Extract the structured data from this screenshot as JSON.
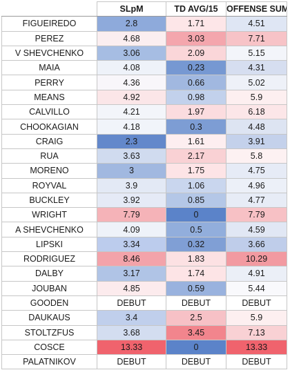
{
  "columns": [
    "",
    "SLpM",
    "TD AVG/15",
    "OFFENSE SUM"
  ],
  "rows": [
    {
      "name": "FIGUEIREDO",
      "cells": [
        {
          "v": "2.8",
          "bg": "#8eaadb"
        },
        {
          "v": "1.71",
          "bg": "#fde6e8"
        },
        {
          "v": "4.51",
          "bg": "#dfe6f4"
        }
      ]
    },
    {
      "name": "PEREZ",
      "cells": [
        {
          "v": "4.68",
          "bg": "#fbeef0"
        },
        {
          "v": "3.03",
          "bg": "#f4a6ad"
        },
        {
          "v": "7.71",
          "bg": "#f7c3c7"
        }
      ]
    },
    {
      "name": "V SHEVCHENKO",
      "cells": [
        {
          "v": "3.06",
          "bg": "#a6bde3"
        },
        {
          "v": "2.09",
          "bg": "#fad6d9"
        },
        {
          "v": "5.15",
          "bg": "#f3f5fa"
        }
      ]
    },
    {
      "name": "MAIA",
      "cells": [
        {
          "v": "4.08",
          "bg": "#eef2f9"
        },
        {
          "v": "0.23",
          "bg": "#7698d2"
        },
        {
          "v": "4.31",
          "bg": "#d6def0"
        }
      ]
    },
    {
      "name": "PERRY",
      "cells": [
        {
          "v": "4.36",
          "bg": "#f8f6fa"
        },
        {
          "v": "0.66",
          "bg": "#a1b8e0"
        },
        {
          "v": "5.02",
          "bg": "#eef1f8"
        }
      ]
    },
    {
      "name": "MEANS",
      "cells": [
        {
          "v": "4.92",
          "bg": "#fbe6e8"
        },
        {
          "v": "0.98",
          "bg": "#c2d1ec"
        },
        {
          "v": "5.9",
          "bg": "#fdeff0"
        }
      ]
    },
    {
      "name": "CALVILLO",
      "cells": [
        {
          "v": "4.21",
          "bg": "#f3f5fa"
        },
        {
          "v": "1.97",
          "bg": "#fbdcdf"
        },
        {
          "v": "6.18",
          "bg": "#fce6e8"
        }
      ]
    },
    {
      "name": "CHOOKAGIAN",
      "cells": [
        {
          "v": "4.18",
          "bg": "#f1f4fa"
        },
        {
          "v": "0.3",
          "bg": "#7d9dd4"
        },
        {
          "v": "4.48",
          "bg": "#dde4f2"
        }
      ]
    },
    {
      "name": "CRAIG",
      "cells": [
        {
          "v": "2.3",
          "bg": "#6388cb"
        },
        {
          "v": "1.61",
          "bg": "#fdeef0"
        },
        {
          "v": "3.91",
          "bg": "#c4d1eb"
        }
      ]
    },
    {
      "name": "RUA",
      "cells": [
        {
          "v": "3.63",
          "bg": "#d0dbef"
        },
        {
          "v": "2.17",
          "bg": "#f9d1d4"
        },
        {
          "v": "5.8",
          "bg": "#fdf1f2"
        }
      ]
    },
    {
      "name": "MORENO",
      "cells": [
        {
          "v": "3",
          "bg": "#a1b8e0"
        },
        {
          "v": "1.75",
          "bg": "#fde4e6"
        },
        {
          "v": "4.75",
          "bg": "#e6ebf6"
        }
      ]
    },
    {
      "name": "ROYVAL",
      "cells": [
        {
          "v": "3.9",
          "bg": "#e3e9f5"
        },
        {
          "v": "1.06",
          "bg": "#c9d6ee"
        },
        {
          "v": "4.96",
          "bg": "#ecf0f8"
        }
      ]
    },
    {
      "name": "BUCKLEY",
      "cells": [
        {
          "v": "3.92",
          "bg": "#e5eaf6"
        },
        {
          "v": "0.85",
          "bg": "#b4c7e7"
        },
        {
          "v": "4.77",
          "bg": "#e7ecf6"
        }
      ]
    },
    {
      "name": "WRIGHT",
      "cells": [
        {
          "v": "7.79",
          "bg": "#f5b3b8"
        },
        {
          "v": "0",
          "bg": "#5b83c9"
        },
        {
          "v": "7.79",
          "bg": "#f7c1c5"
        }
      ]
    },
    {
      "name": "A SHEVCHENKO",
      "cells": [
        {
          "v": "4.09",
          "bg": "#eef2f9"
        },
        {
          "v": "0.5",
          "bg": "#92aedc"
        },
        {
          "v": "4.59",
          "bg": "#e1e7f4"
        }
      ]
    },
    {
      "name": "LIPSKI",
      "cells": [
        {
          "v": "3.34",
          "bg": "#bccced"
        },
        {
          "v": "0.32",
          "bg": "#809fd5"
        },
        {
          "v": "3.66",
          "bg": "#bfcdea"
        }
      ]
    },
    {
      "name": "RODRIGUEZ",
      "cells": [
        {
          "v": "8.46",
          "bg": "#f3a3aa"
        },
        {
          "v": "1.83",
          "bg": "#fce1e3"
        },
        {
          "v": "10.29",
          "bg": "#f29aa1"
        }
      ]
    },
    {
      "name": "DALBY",
      "cells": [
        {
          "v": "3.17",
          "bg": "#b0c4e6"
        },
        {
          "v": "1.74",
          "bg": "#fde4e6"
        },
        {
          "v": "4.91",
          "bg": "#ebeff7"
        }
      ]
    },
    {
      "name": "JOUBAN",
      "cells": [
        {
          "v": "4.85",
          "bg": "#fcebed"
        },
        {
          "v": "0.59",
          "bg": "#99b2de"
        },
        {
          "v": "5.44",
          "bg": "#f9f9fc"
        }
      ]
    },
    {
      "name": "GOODEN",
      "cells": [
        {
          "v": "DEBUT",
          "bg": "#ffffff"
        },
        {
          "v": "DEBUT",
          "bg": "#ffffff"
        },
        {
          "v": "DEBUT",
          "bg": "#ffffff"
        }
      ]
    },
    {
      "name": "DAUKAUS",
      "cells": [
        {
          "v": "3.4",
          "bg": "#c0cfec"
        },
        {
          "v": "2.5",
          "bg": "#f7c1c6"
        },
        {
          "v": "5.9",
          "bg": "#fdeff0"
        }
      ]
    },
    {
      "name": "STOLTZFUS",
      "cells": [
        {
          "v": "3.68",
          "bg": "#d3ddf0"
        },
        {
          "v": "3.45",
          "bg": "#f2858d"
        },
        {
          "v": "7.13",
          "bg": "#f9d1d4"
        }
      ]
    },
    {
      "name": "COSCE",
      "cells": [
        {
          "v": "13.33",
          "bg": "#f0636d"
        },
        {
          "v": "0",
          "bg": "#5b83c9"
        },
        {
          "v": "13.33",
          "bg": "#f0636d"
        }
      ]
    },
    {
      "name": "PALATNIKOV",
      "cells": [
        {
          "v": "DEBUT",
          "bg": "#ffffff"
        },
        {
          "v": "DEBUT",
          "bg": "#ffffff"
        },
        {
          "v": "DEBUT",
          "bg": "#ffffff"
        }
      ]
    }
  ]
}
